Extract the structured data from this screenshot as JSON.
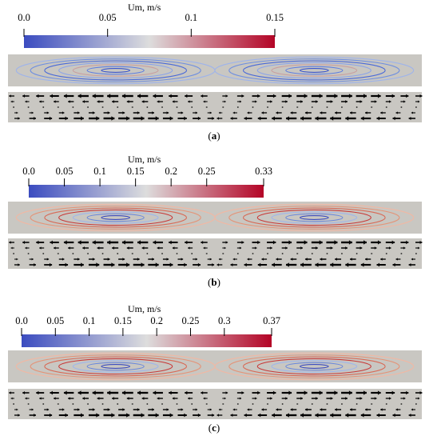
{
  "panels": [
    {
      "label": "(a)",
      "label_letter": "a",
      "colorbar_title": "Um, m/s",
      "ticks": [
        "0.0",
        "0.05",
        "0.1",
        "0.15"
      ],
      "tick_values": [
        0.0,
        0.05,
        0.1,
        0.15
      ],
      "max_value": 0.15
    },
    {
      "label": "(b)",
      "label_letter": "b",
      "colorbar_title": "Um, m/s",
      "ticks": [
        "0.0",
        "0.05",
        "0.1",
        "0.15",
        "0.2",
        "0.25",
        "0.33"
      ],
      "tick_values": [
        0.0,
        0.05,
        0.1,
        0.15,
        0.2,
        0.25,
        0.33
      ],
      "max_value": 0.33
    },
    {
      "label": "(c)",
      "label_letter": "c",
      "colorbar_title": "Um, m/s",
      "ticks": [
        "0.0",
        "0.05",
        "0.1",
        "0.15",
        "0.2",
        "0.25",
        "0.3",
        "0.37"
      ],
      "tick_values": [
        0.0,
        0.05,
        0.1,
        0.15,
        0.2,
        0.25,
        0.3,
        0.37
      ],
      "max_value": 0.37
    }
  ],
  "colors": {
    "low": "#3b4cc0",
    "mid": "#dddddd",
    "high": "#b40426",
    "background_gray": "#c9c7c2"
  }
}
